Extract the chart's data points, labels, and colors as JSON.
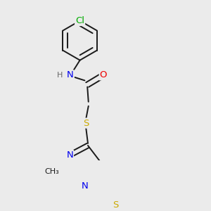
{
  "bg_color": "#ebebeb",
  "bond_color": "#1a1a1a",
  "bond_width": 1.4,
  "atom_colors": {
    "C": "#1a1a1a",
    "N": "#0000ee",
    "O": "#ee0000",
    "S": "#ccaa00",
    "Cl": "#00aa00",
    "H": "#666666"
  },
  "font_size": 9.5,
  "aromatic_inner_scale": 0.75
}
